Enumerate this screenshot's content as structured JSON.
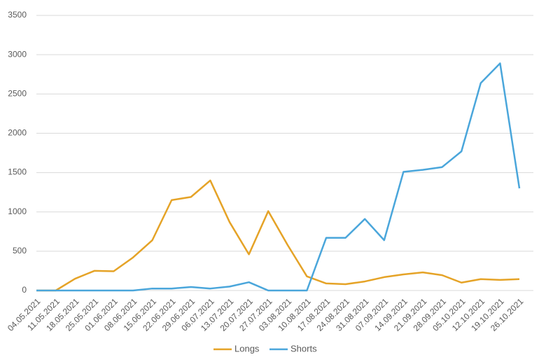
{
  "chart_data": {
    "type": "line",
    "x": [
      "04.05.2021",
      "11.05.2021",
      "18.05.2021",
      "25.05.2021",
      "01.06.2021",
      "08.06.2021",
      "15.06.2021",
      "22.06.2021",
      "29.06.2021",
      "06.07.2021",
      "13.07.2021",
      "20.07.2021",
      "27.07.2021",
      "03.08.2021",
      "10.08.2021",
      "17.08.2021",
      "24.08.2021",
      "31.08.2021",
      "07.09.2021",
      "14.09.2021",
      "21.09.2021",
      "28.09.2021",
      "05.10.2021",
      "12.10.2021",
      "19.10.2021",
      "26.10.2021"
    ],
    "series": [
      {
        "name": "Longs",
        "color": "#e5a327",
        "values": [
          0,
          0,
          150,
          250,
          245,
          420,
          640,
          1150,
          1190,
          1400,
          870,
          460,
          1010,
          580,
          180,
          90,
          80,
          115,
          170,
          205,
          230,
          195,
          100,
          145,
          135,
          145
        ]
      },
      {
        "name": "Shorts",
        "color": "#4aa6db",
        "values": [
          0,
          0,
          0,
          0,
          0,
          0,
          25,
          25,
          45,
          25,
          50,
          105,
          0,
          0,
          0,
          670,
          670,
          910,
          640,
          1510,
          1535,
          1570,
          1770,
          2640,
          2890,
          1300
        ]
      }
    ],
    "ylim": [
      0,
      3500
    ],
    "yticks": [
      0,
      500,
      1000,
      1500,
      2000,
      2500,
      3000,
      3500
    ],
    "grid": true,
    "legend": "bottom"
  }
}
